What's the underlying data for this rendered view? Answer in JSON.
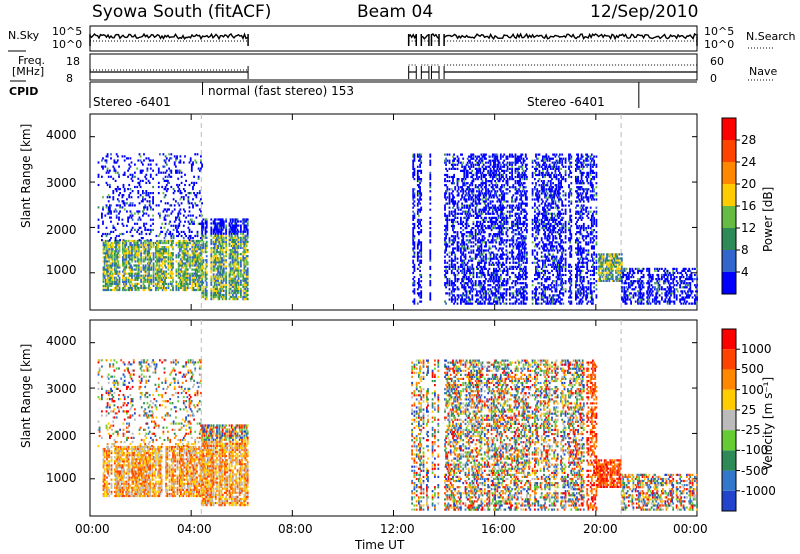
{
  "header": {
    "title": "Syowa South (fitACF)",
    "beam": "Beam 04",
    "date": "12/Sep/2010"
  },
  "panels": {
    "nsky_label": "N.Sky",
    "nsky_ticks": [
      "10^5",
      "10^0"
    ],
    "nsearch_label": "N.Search",
    "nsearch_ticks": [
      "10^5",
      "10^0"
    ],
    "freq_label_1": "Freq.",
    "freq_label_2": "[MHz]",
    "freq_ticks": [
      "18",
      "8"
    ],
    "nave_label": "Nave",
    "nave_ticks": [
      "60",
      "0"
    ],
    "cpid_label": "CPID",
    "cpid_modes": [
      "Stereo -6401",
      "normal (fast stereo) 153",
      "Stereo -6401"
    ]
  },
  "chart_data": [
    {
      "type": "heatmap",
      "name": "power",
      "ylabel": "Slant Range [km]",
      "xlabel": "",
      "ylim": [
        180,
        4500
      ],
      "yticks": [
        "4000",
        "3000",
        "2000",
        "1000"
      ],
      "xticks": [
        "00:00",
        "04:00",
        "08:00",
        "12:00",
        "16:00",
        "20:00",
        "00:00"
      ],
      "xlim_hours": [
        0,
        24
      ],
      "colorbar": {
        "label": "Power [dB]",
        "ticks": [
          "28",
          "24",
          "20",
          "16",
          "12",
          "8",
          "4"
        ],
        "colors": [
          "#0000ff",
          "#3366cc",
          "#2e8b57",
          "#66bb44",
          "#ffcc00",
          "#ff8800",
          "#ff4400",
          "#ff0000"
        ]
      },
      "echo_regions": [
        {
          "t0": 0.5,
          "t1": 4.4,
          "r0": 600,
          "r1": 1700,
          "level": "strong"
        },
        {
          "t0": 0.3,
          "t1": 4.4,
          "r0": 1700,
          "r1": 3600,
          "level": "sparse"
        },
        {
          "t0": 4.4,
          "t1": 6.2,
          "r0": 400,
          "r1": 2200,
          "level": "strong"
        },
        {
          "t0": 12.7,
          "t1": 13.8,
          "r0": 300,
          "r1": 3600,
          "level": "stripes"
        },
        {
          "t0": 14.0,
          "t1": 20.0,
          "r0": 300,
          "r1": 3600,
          "level": "medium"
        },
        {
          "t0": 20.0,
          "t1": 21.0,
          "r0": 800,
          "r1": 1400,
          "level": "strong"
        },
        {
          "t0": 21.0,
          "t1": 24.0,
          "r0": 300,
          "r1": 1100,
          "level": "medium"
        }
      ]
    },
    {
      "type": "heatmap",
      "name": "velocity",
      "ylabel": "Slant Range [km]",
      "xlabel": "Time UT",
      "ylim": [
        180,
        4500
      ],
      "yticks": [
        "4000",
        "3000",
        "2000",
        "1000"
      ],
      "xticks": [
        "00:00",
        "04:00",
        "08:00",
        "12:00",
        "16:00",
        "20:00",
        "00:00"
      ],
      "xlim_hours": [
        0,
        24
      ],
      "colorbar": {
        "label": "Velocity [m s⁻¹]",
        "ticks": [
          "1000",
          "500",
          "100",
          "25",
          "-25",
          "-100",
          "-500",
          "-1000"
        ],
        "colors": [
          "#2244cc",
          "#3377cc",
          "#2e8b57",
          "#66cc33",
          "#bbbbbb",
          "#ffcc00",
          "#ff8800",
          "#ff4400",
          "#ff0000"
        ]
      }
    }
  ]
}
